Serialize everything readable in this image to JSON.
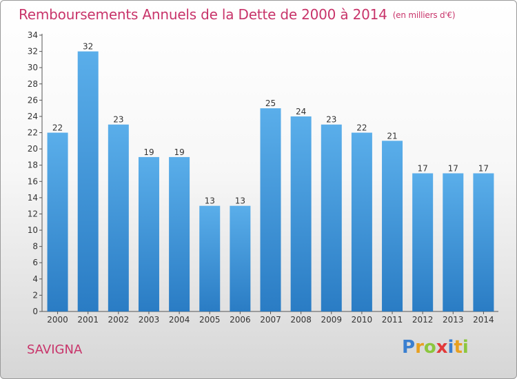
{
  "header": {
    "title": "Remboursements Annuels de la Dette de 2000 à 2014",
    "unit": "(en milliers d'€)"
  },
  "footer": {
    "town": "SAVIGNA",
    "logo": "Proxiti"
  },
  "colors": {
    "title": "#c8346a",
    "bar_top": "#5aaeea",
    "bar_bottom": "#2a7cc4",
    "logo_p": "#3a7fd0",
    "logo_r": "#e8a020",
    "logo_o": "#8cc63e",
    "logo_x": "#e23a3a",
    "logo_i": "#3a7fd0",
    "logo_t": "#e8a020",
    "logo_i2": "#8cc63e"
  },
  "chart_data": {
    "type": "bar",
    "title": "Remboursements Annuels de la Dette de 2000 à 2014",
    "ylabel": "en milliers d'€",
    "xlabel": "",
    "categories": [
      "2000",
      "2001",
      "2002",
      "2003",
      "2004",
      "2005",
      "2006",
      "2007",
      "2008",
      "2009",
      "2010",
      "2011",
      "2012",
      "2013",
      "2014"
    ],
    "values": [
      22,
      32,
      23,
      19,
      19,
      13,
      13,
      25,
      24,
      23,
      22,
      21,
      17,
      17,
      17
    ],
    "ylim": [
      0,
      34
    ],
    "yticks": [
      0,
      2,
      4,
      6,
      8,
      10,
      12,
      14,
      16,
      18,
      20,
      22,
      24,
      26,
      28,
      30,
      32,
      34
    ],
    "grid": false
  }
}
